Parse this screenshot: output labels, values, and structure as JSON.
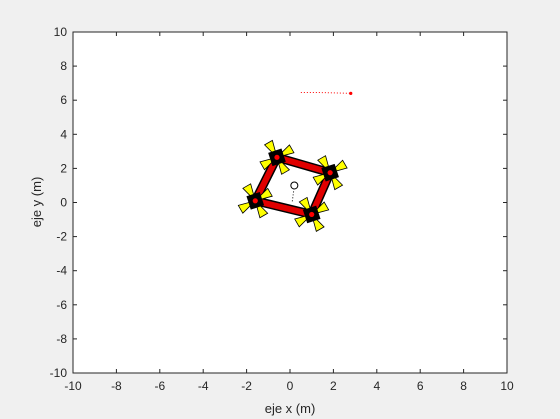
{
  "chart_data": {
    "type": "scatter",
    "title": "",
    "xlabel": "eje x (m)",
    "ylabel": "eje y (m)",
    "xlim": [
      -10,
      10
    ],
    "ylim": [
      -10,
      10
    ],
    "grid": false,
    "xticks": [
      "-10",
      "-8",
      "-6",
      "-4",
      "-2",
      "0",
      "2",
      "4",
      "6",
      "8",
      "10"
    ],
    "yticks": [
      "-10",
      "-8",
      "-6",
      "-4",
      "-2",
      "0",
      "2",
      "4",
      "6",
      "8",
      "10"
    ],
    "vehicle": {
      "description": "quadcopter-frame",
      "center": [
        0.2,
        1.0
      ],
      "rotors": [
        {
          "x": -0.6,
          "y": 2.65
        },
        {
          "x": 1.85,
          "y": 1.75
        },
        {
          "x": 1.0,
          "y": -0.7
        },
        {
          "x": -1.6,
          "y": 0.1
        }
      ],
      "center_trail": [
        [
          0.2,
          1.0
        ],
        [
          0.1,
          0.0
        ]
      ],
      "arm_color": "#e00000",
      "rotor_color": "#000000",
      "blade_color": "#ffff00",
      "hub_color": "#ff0000"
    },
    "target_trail": {
      "x": [
        0.5,
        0.8,
        1.1,
        1.4,
        1.7,
        2.0,
        2.3,
        2.6,
        2.8
      ],
      "y": [
        6.45,
        6.45,
        6.45,
        6.45,
        6.44,
        6.43,
        6.42,
        6.41,
        6.4
      ],
      "color": "#ff0000"
    },
    "target_point": {
      "x": 2.8,
      "y": 6.4,
      "color": "#ff0000"
    }
  }
}
